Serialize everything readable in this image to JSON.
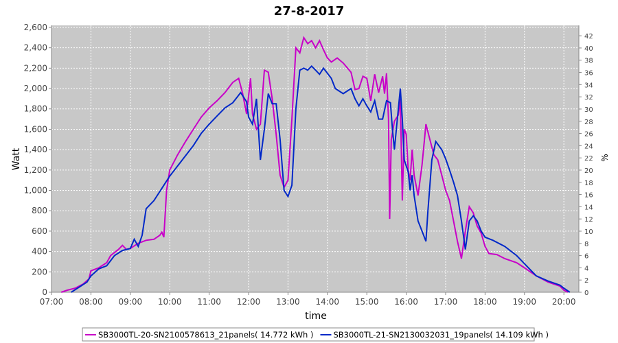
{
  "chart_data": {
    "type": "line",
    "title": "27-8-2017",
    "x_label": "time",
    "y_label": "Watt",
    "y2_label": "%",
    "xlim": [
      7,
      20.38
    ],
    "xticks": [
      {
        "value": 7,
        "label": "07:00"
      },
      {
        "value": 8,
        "label": "08:00"
      },
      {
        "value": 9,
        "label": "09:00"
      },
      {
        "value": 10,
        "label": "10:00"
      },
      {
        "value": 11,
        "label": "11:00"
      },
      {
        "value": 12,
        "label": "12:00"
      },
      {
        "value": 13,
        "label": "13:00"
      },
      {
        "value": 14,
        "label": "14:00"
      },
      {
        "value": 15,
        "label": "15:00"
      },
      {
        "value": 16,
        "label": "16:00"
      },
      {
        "value": 17,
        "label": "17:00"
      },
      {
        "value": 18,
        "label": "18:00"
      },
      {
        "value": 19,
        "label": "19:00"
      },
      {
        "value": 20,
        "label": "20:00"
      }
    ],
    "ylim": [
      0,
      2620
    ],
    "yticks": [
      0,
      200,
      400,
      600,
      800,
      {
        "value": 1000,
        "label": "1,000"
      },
      {
        "value": 1200,
        "label": "1,200"
      },
      {
        "value": 1400,
        "label": "1,400"
      },
      {
        "value": 1600,
        "label": "1,600"
      },
      {
        "value": 1800,
        "label": "1,800"
      },
      {
        "value": 2000,
        "label": "2,000"
      },
      {
        "value": 2200,
        "label": "2,200"
      },
      {
        "value": 2400,
        "label": "2,400"
      },
      {
        "value": 2600,
        "label": "2,600"
      }
    ],
    "y2lim": [
      0,
      43.7
    ],
    "y2ticks": [
      0,
      2,
      4,
      6,
      8,
      10,
      12,
      14,
      16,
      18,
      20,
      22,
      24,
      26,
      28,
      30,
      32,
      34,
      36,
      38,
      40,
      42
    ],
    "grid": true,
    "series": [
      {
        "name": "SB3000TL-20-SN2100578613_21panels( 14.772 kWh )",
        "color": "#c800c8",
        "x": [
          7.25,
          7.4,
          7.6,
          7.8,
          7.95,
          8.0,
          8.2,
          8.4,
          8.5,
          8.7,
          8.8,
          8.9,
          9.0,
          9.2,
          9.4,
          9.6,
          9.75,
          9.8,
          9.85,
          9.92,
          10.0,
          10.2,
          10.4,
          10.6,
          10.8,
          11.0,
          11.2,
          11.4,
          11.6,
          11.75,
          11.85,
          11.95,
          12.05,
          12.1,
          12.2,
          12.3,
          12.4,
          12.5,
          12.6,
          12.7,
          12.8,
          12.9,
          13.0,
          13.1,
          13.2,
          13.3,
          13.4,
          13.5,
          13.6,
          13.7,
          13.8,
          13.9,
          14.0,
          14.1,
          14.25,
          14.4,
          14.6,
          14.7,
          14.8,
          14.9,
          15.0,
          15.1,
          15.2,
          15.3,
          15.4,
          15.45,
          15.5,
          15.55,
          15.58,
          15.62,
          15.7,
          15.8,
          15.85,
          15.9,
          15.95,
          16.0,
          16.05,
          16.1,
          16.15,
          16.2,
          16.3,
          16.4,
          16.5,
          16.6,
          16.7,
          16.8,
          16.9,
          17.0,
          17.1,
          17.2,
          17.3,
          17.4,
          17.5,
          17.6,
          17.7,
          17.8,
          17.9,
          18.0,
          18.1,
          18.3,
          18.5,
          18.8,
          19.0,
          19.3,
          19.6,
          19.9,
          20.0,
          20.1
        ],
        "values": [
          0,
          20,
          40,
          80,
          130,
          210,
          240,
          290,
          360,
          420,
          460,
          420,
          430,
          480,
          510,
          520,
          560,
          590,
          540,
          1000,
          1200,
          1350,
          1480,
          1600,
          1720,
          1810,
          1880,
          1960,
          2060,
          2100,
          1950,
          1750,
          2100,
          1750,
          1600,
          1650,
          2180,
          2160,
          1900,
          1550,
          1150,
          1030,
          1100,
          1700,
          2400,
          2350,
          2500,
          2440,
          2470,
          2400,
          2470,
          2380,
          2300,
          2260,
          2300,
          2250,
          2160,
          1990,
          2000,
          2120,
          2100,
          1880,
          2140,
          1960,
          2120,
          1950,
          2150,
          1700,
          720,
          1500,
          1680,
          1740,
          1900,
          900,
          1600,
          1550,
          1200,
          1100,
          1400,
          1150,
          950,
          1250,
          1650,
          1500,
          1350,
          1300,
          1150,
          1000,
          900,
          700,
          500,
          330,
          600,
          840,
          780,
          650,
          580,
          450,
          380,
          370,
          330,
          290,
          240,
          160,
          100,
          60,
          20,
          0
        ]
      },
      {
        "name": "SB3000TL-21-SN2130032031_19panels( 14.109 kWh )",
        "color": "#0028c8",
        "x": [
          7.5,
          7.7,
          7.9,
          8.0,
          8.2,
          8.4,
          8.6,
          8.8,
          9.0,
          9.1,
          9.2,
          9.3,
          9.4,
          9.6,
          9.8,
          10.0,
          10.2,
          10.4,
          10.6,
          10.8,
          11.0,
          11.2,
          11.4,
          11.6,
          11.8,
          11.95,
          12.0,
          12.1,
          12.2,
          12.3,
          12.4,
          12.5,
          12.6,
          12.7,
          12.8,
          12.9,
          13.0,
          13.1,
          13.2,
          13.3,
          13.4,
          13.5,
          13.6,
          13.7,
          13.8,
          13.9,
          14.1,
          14.2,
          14.4,
          14.6,
          14.7,
          14.8,
          14.9,
          15.0,
          15.1,
          15.2,
          15.3,
          15.4,
          15.5,
          15.6,
          15.65,
          15.7,
          15.75,
          15.85,
          15.9,
          15.95,
          16.05,
          16.1,
          16.15,
          16.2,
          16.3,
          16.4,
          16.5,
          16.55,
          16.65,
          16.75,
          16.9,
          17.0,
          17.1,
          17.2,
          17.3,
          17.4,
          17.5,
          17.6,
          17.7,
          17.8,
          17.9,
          18.0,
          18.2,
          18.5,
          18.8,
          19.0,
          19.3,
          19.6,
          19.9,
          20.0,
          20.15
        ],
        "values": [
          0,
          50,
          100,
          160,
          230,
          260,
          360,
          410,
          430,
          520,
          450,
          560,
          820,
          900,
          1020,
          1140,
          1240,
          1340,
          1440,
          1560,
          1650,
          1730,
          1810,
          1860,
          1960,
          1870,
          1720,
          1650,
          1900,
          1300,
          1600,
          1950,
          1850,
          1850,
          1500,
          1000,
          940,
          1050,
          1800,
          2180,
          2200,
          2180,
          2220,
          2180,
          2140,
          2200,
          2100,
          2000,
          1950,
          2000,
          1900,
          1830,
          1900,
          1830,
          1770,
          1880,
          1700,
          1700,
          1880,
          1860,
          1600,
          1400,
          1600,
          2000,
          1700,
          1300,
          1180,
          1000,
          1150,
          950,
          700,
          600,
          500,
          800,
          1300,
          1480,
          1400,
          1310,
          1200,
          1080,
          950,
          700,
          420,
          700,
          750,
          700,
          600,
          540,
          510,
          450,
          360,
          280,
          160,
          110,
          70,
          40,
          0
        ]
      }
    ]
  }
}
